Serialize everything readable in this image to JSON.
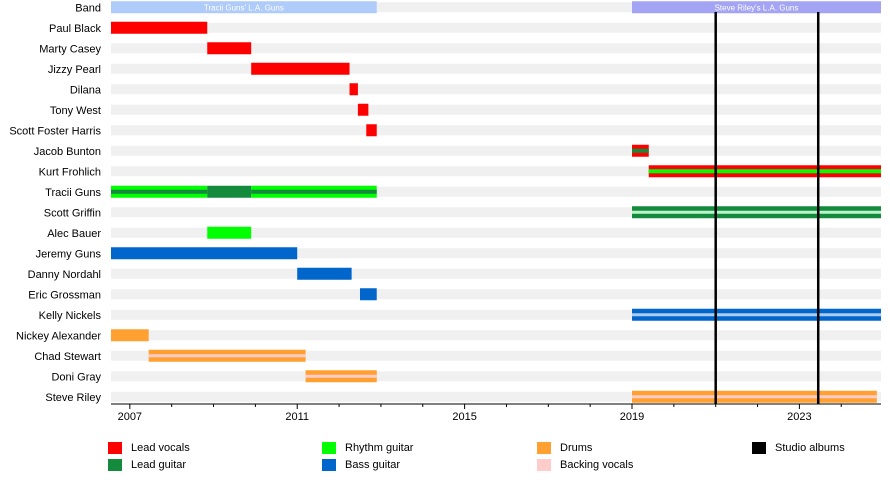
{
  "chart_data": {
    "type": "timeline",
    "x_range": [
      2006.55,
      2024.95
    ],
    "x_ticks": [
      2007,
      2011,
      2015,
      2019,
      2023
    ],
    "members": [
      "Band",
      "Paul Black",
      "Marty Casey",
      "Jizzy Pearl",
      "Dilana",
      "Tony West",
      "Scott Foster Harris",
      "Jacob Bunton",
      "Kurt Frohlich",
      "Tracii Guns",
      "Scott Griffin",
      "Alec Bauer",
      "Jeremy Guns",
      "Danny Nordahl",
      "Eric Grossman",
      "Kelly Nickels",
      "Nickey Alexander",
      "Chad Stewart",
      "Doni Gray",
      "Steve Riley"
    ],
    "bands": [
      {
        "label": "Tracii Guns' L.A. Guns",
        "start": 2006.55,
        "end": 2012.9,
        "color": "#aecbfa"
      },
      {
        "label": "Steve Riley's L.A. Guns",
        "start": 2019.0,
        "end": 2024.95,
        "color": "#a4a4f4"
      }
    ],
    "bars": [
      {
        "member": "Paul Black",
        "start": 2006.55,
        "end": 2008.85,
        "roles": [
          "lead_vocals"
        ]
      },
      {
        "member": "Marty Casey",
        "start": 2008.85,
        "end": 2009.9,
        "roles": [
          "lead_vocals"
        ]
      },
      {
        "member": "Jizzy Pearl",
        "start": 2009.9,
        "end": 2012.25,
        "roles": [
          "lead_vocals"
        ]
      },
      {
        "member": "Dilana",
        "start": 2012.25,
        "end": 2012.45,
        "roles": [
          "lead_vocals"
        ]
      },
      {
        "member": "Tony West",
        "start": 2012.45,
        "end": 2012.7,
        "roles": [
          "lead_vocals"
        ]
      },
      {
        "member": "Scott Foster Harris",
        "start": 2012.65,
        "end": 2012.9,
        "roles": [
          "lead_vocals"
        ]
      },
      {
        "member": "Jacob Bunton",
        "start": 2019.0,
        "end": 2019.4,
        "roles": [
          "lead_vocals",
          "lead_guitar"
        ]
      },
      {
        "member": "Kurt Frohlich",
        "start": 2019.4,
        "end": 2024.95,
        "roles": [
          "lead_vocals",
          "rhythm_guitar"
        ]
      },
      {
        "member": "Tracii Guns",
        "start": 2006.55,
        "end": 2008.85,
        "roles": [
          "rhythm_guitar",
          "lead_guitar"
        ]
      },
      {
        "member": "Tracii Guns",
        "start": 2008.85,
        "end": 2009.9,
        "roles": [
          "lead_guitar"
        ]
      },
      {
        "member": "Tracii Guns",
        "start": 2009.9,
        "end": 2012.9,
        "roles": [
          "rhythm_guitar",
          "lead_guitar"
        ]
      },
      {
        "member": "Scott Griffin",
        "start": 2019.0,
        "end": 2024.95,
        "roles": [
          "lead_guitar",
          "rhythm_guitar_light"
        ]
      },
      {
        "member": "Alec Bauer",
        "start": 2008.85,
        "end": 2009.9,
        "roles": [
          "rhythm_guitar"
        ]
      },
      {
        "member": "Jeremy Guns",
        "start": 2006.55,
        "end": 2011.0,
        "roles": [
          "bass_guitar"
        ]
      },
      {
        "member": "Danny Nordahl",
        "start": 2011.0,
        "end": 2012.3,
        "roles": [
          "bass_guitar"
        ]
      },
      {
        "member": "Eric Grossman",
        "start": 2012.5,
        "end": 2012.9,
        "roles": [
          "bass_guitar"
        ]
      },
      {
        "member": "Kelly Nickels",
        "start": 2019.0,
        "end": 2024.95,
        "roles": [
          "bass_guitar",
          "bass_light"
        ]
      },
      {
        "member": "Nickey Alexander",
        "start": 2006.55,
        "end": 2007.45,
        "roles": [
          "drums"
        ]
      },
      {
        "member": "Chad Stewart",
        "start": 2007.45,
        "end": 2011.2,
        "roles": [
          "drums",
          "backing_vocals"
        ]
      },
      {
        "member": "Doni Gray",
        "start": 2011.2,
        "end": 2012.9,
        "roles": [
          "drums",
          "backing_vocals"
        ]
      },
      {
        "member": "Steve Riley",
        "start": 2019.0,
        "end": 2024.85,
        "roles": [
          "drums",
          "backing_vocals"
        ]
      }
    ],
    "studio_albums": [
      2021.0,
      2023.45
    ],
    "role_colors": {
      "lead_vocals": "#ff0000",
      "lead_guitar": "#138a3c",
      "rhythm_guitar": "#00ff00",
      "rhythm_guitar_light": "#bbf5cb",
      "bass_guitar": "#0066cc",
      "bass_light": "#aaccee",
      "drums": "#ffa030",
      "backing_vocals": "#ffcccc",
      "studio_albums": "#000000",
      "row_stripe": "#f0f0f0"
    },
    "legend": [
      {
        "key": "lead_vocals",
        "label": "Lead vocals"
      },
      {
        "key": "lead_guitar",
        "label": "Lead guitar"
      },
      {
        "key": "rhythm_guitar",
        "label": "Rhythm guitar"
      },
      {
        "key": "bass_guitar",
        "label": "Bass guitar"
      },
      {
        "key": "drums",
        "label": "Drums"
      },
      {
        "key": "backing_vocals",
        "label": "Backing vocals"
      },
      {
        "key": "studio_albums",
        "label": "Studio albums"
      }
    ]
  }
}
